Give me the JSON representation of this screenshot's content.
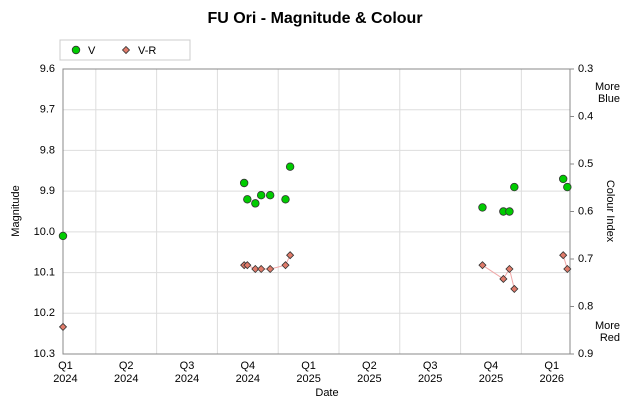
{
  "chart_data": {
    "type": "scatter",
    "title": "FU Ori - Magnitude & Colour",
    "xlabel": "Date",
    "ylabel": "Magnitude",
    "y2label": "Colour Index",
    "y2_top_note": "More Blue",
    "y2_bottom_note": "More Red",
    "xlim": [
      2024.115,
      2026.2
    ],
    "xticks": [
      {
        "value": 2024.125,
        "label": "Q1 2024"
      },
      {
        "value": 2024.375,
        "label": "Q2 2024"
      },
      {
        "value": 2024.625,
        "label": "Q3 2024"
      },
      {
        "value": 2024.875,
        "label": "Q4 2024"
      },
      {
        "value": 2025.125,
        "label": "Q1 2025"
      },
      {
        "value": 2025.375,
        "label": "Q2 2025"
      },
      {
        "value": 2025.625,
        "label": "Q3 2025"
      },
      {
        "value": 2025.875,
        "label": "Q4 2025"
      },
      {
        "value": 2026.125,
        "label": "Q1 2026"
      }
    ],
    "xgrid": [
      2024.25,
      2024.5,
      2024.75,
      2025,
      2025.25,
      2025.5,
      2025.75,
      2026
    ],
    "ylim": [
      9.6,
      10.3
    ],
    "yticks": [
      9.6,
      9.7,
      9.8,
      9.9,
      {
        "value": 10,
        "label": "10.0"
      },
      10.1,
      10.2,
      10.3
    ],
    "y_inverted": true,
    "y2lim": [
      0.3,
      0.9
    ],
    "y2ticks": [
      0.3,
      0.4,
      0.5,
      0.6,
      0.7,
      0.8,
      0.9
    ],
    "grid": true,
    "series": [
      {
        "name": "V",
        "color": "#00cc00",
        "marker": "circle",
        "x": [
          2024.115,
          2024.86,
          2024.873,
          2024.906,
          2024.93,
          2024.967,
          2025.03,
          2025.049,
          2025.84,
          2025.926,
          2025.951,
          2025.971,
          2026.172,
          2026.189
        ],
        "values": [
          10.01,
          9.88,
          9.92,
          9.93,
          9.91,
          9.91,
          9.92,
          9.84,
          9.94,
          9.95,
          9.95,
          9.89,
          9.87,
          9.89
        ]
      },
      {
        "name": "V-R",
        "color": "#e07b6a",
        "marker": "diamond",
        "axis": "y2",
        "line_color": "#f0a8a8",
        "x": [
          2024.115,
          null,
          2024.86,
          2024.873,
          2024.906,
          2024.93,
          2024.967,
          2025.03,
          2025.049,
          null,
          2025.84,
          2025.926,
          2025.951,
          2025.971,
          null,
          2026.172,
          2026.189
        ],
        "values": [
          0.843,
          null,
          0.713,
          0.713,
          0.721,
          0.721,
          0.721,
          0.713,
          0.692,
          null,
          0.713,
          0.742,
          0.721,
          0.763,
          null,
          0.692,
          0.721
        ]
      }
    ]
  }
}
